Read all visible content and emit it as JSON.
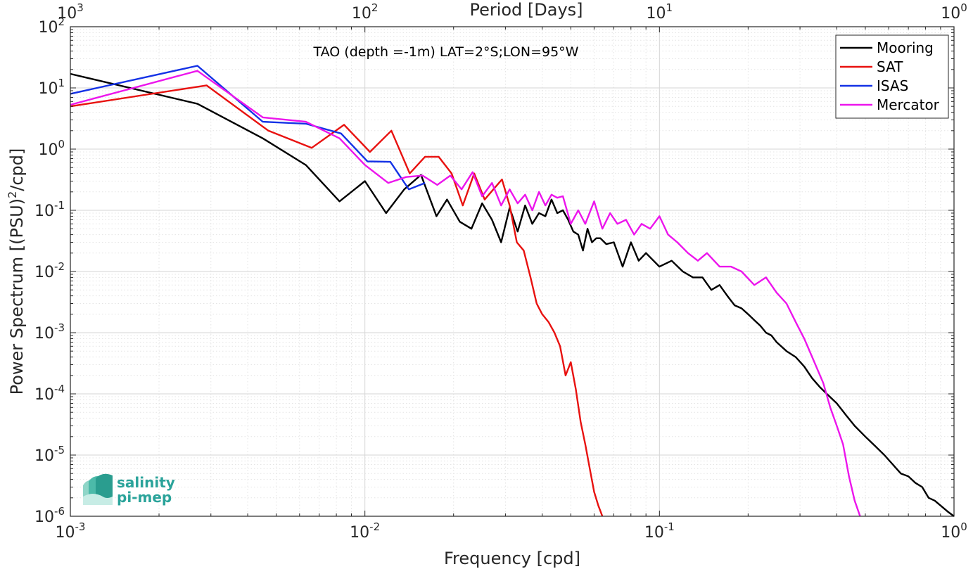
{
  "chart_data": {
    "type": "line",
    "title": "",
    "annotation": "TAO (depth =-1m) LAT=2°S;LON=95°W",
    "xlabel": "Frequency [cpd]",
    "ylabel": "Power Spectrum [(PSU)²/cpd]",
    "ylabel_parts": {
      "before": "Power Spectrum [(PSU)",
      "sup": "2",
      "after": "/cpd]"
    },
    "top_xlabel": "Period [Days]",
    "x_scale": "log",
    "y_scale": "log",
    "xlim": [
      0.001,
      1
    ],
    "ylim": [
      1e-06,
      100
    ],
    "x_ticks": [
      {
        "value": 0.001,
        "base": "10",
        "exp": "-3"
      },
      {
        "value": 0.01,
        "base": "10",
        "exp": "-2"
      },
      {
        "value": 0.1,
        "base": "10",
        "exp": "-1"
      },
      {
        "value": 1,
        "base": "10",
        "exp": "0"
      }
    ],
    "y_ticks": [
      {
        "value": 100,
        "base": "10",
        "exp": "2"
      },
      {
        "value": 10,
        "base": "10",
        "exp": "1"
      },
      {
        "value": 1,
        "base": "10",
        "exp": "0"
      },
      {
        "value": 0.1,
        "base": "10",
        "exp": "-1"
      },
      {
        "value": 0.01,
        "base": "10",
        "exp": "-2"
      },
      {
        "value": 0.001,
        "base": "10",
        "exp": "-3"
      },
      {
        "value": 0.0001,
        "base": "10",
        "exp": "-4"
      },
      {
        "value": 1e-05,
        "base": "10",
        "exp": "-5"
      },
      {
        "value": 1e-06,
        "base": "10",
        "exp": "-6"
      }
    ],
    "top_ticks": [
      {
        "value": 0.001,
        "base": "10",
        "exp": "3"
      },
      {
        "value": 0.01,
        "base": "10",
        "exp": "2"
      },
      {
        "value": 0.1,
        "base": "10",
        "exp": "1"
      },
      {
        "value": 1,
        "base": "10",
        "exp": "0"
      }
    ],
    "grid": true,
    "legend_position": "top-right",
    "series": [
      {
        "name": "Mooring",
        "color": "#000000",
        "x": [
          0.001,
          0.0027,
          0.0045,
          0.0063,
          0.0082,
          0.01,
          0.0118,
          0.0136,
          0.0155,
          0.0175,
          0.019,
          0.021,
          0.023,
          0.025,
          0.027,
          0.029,
          0.031,
          0.033,
          0.035,
          0.037,
          0.039,
          0.041,
          0.043,
          0.045,
          0.047,
          0.049,
          0.051,
          0.053,
          0.055,
          0.057,
          0.059,
          0.061,
          0.063,
          0.066,
          0.07,
          0.075,
          0.08,
          0.085,
          0.09,
          0.1,
          0.11,
          0.12,
          0.13,
          0.14,
          0.15,
          0.16,
          0.17,
          0.18,
          0.19,
          0.2,
          0.21,
          0.22,
          0.23,
          0.24,
          0.25,
          0.27,
          0.29,
          0.31,
          0.33,
          0.35,
          0.37,
          0.4,
          0.43,
          0.46,
          0.5,
          0.54,
          0.58,
          0.62,
          0.66,
          0.7,
          0.74,
          0.78,
          0.82,
          0.86,
          0.9,
          0.95,
          1.0
        ],
        "y": [
          17,
          5.5,
          1.5,
          0.55,
          0.14,
          0.3,
          0.09,
          0.22,
          0.38,
          0.08,
          0.15,
          0.065,
          0.05,
          0.13,
          0.07,
          0.03,
          0.11,
          0.045,
          0.12,
          0.06,
          0.09,
          0.08,
          0.15,
          0.09,
          0.1,
          0.07,
          0.045,
          0.04,
          0.022,
          0.05,
          0.03,
          0.035,
          0.035,
          0.028,
          0.03,
          0.012,
          0.03,
          0.015,
          0.02,
          0.012,
          0.015,
          0.01,
          0.008,
          0.008,
          0.005,
          0.006,
          0.004,
          0.0028,
          0.0025,
          0.002,
          0.0016,
          0.0013,
          0.001,
          0.0009,
          0.0007,
          0.0005,
          0.0004,
          0.00028,
          0.00018,
          0.00013,
          0.0001,
          7e-05,
          4.5e-05,
          3e-05,
          2e-05,
          1.4e-05,
          1e-05,
          7e-06,
          5e-06,
          4.5e-06,
          3.5e-06,
          3e-06,
          2e-06,
          1.8e-06,
          1.5e-06,
          1.2e-06,
          1e-06
        ]
      },
      {
        "name": "SAT",
        "color": "#e8110f",
        "x": [
          0.001,
          0.0029,
          0.0047,
          0.0066,
          0.0085,
          0.0104,
          0.0123,
          0.0142,
          0.016,
          0.0178,
          0.0197,
          0.0215,
          0.0235,
          0.0255,
          0.0273,
          0.0292,
          0.031,
          0.0328,
          0.0346,
          0.0365,
          0.0383,
          0.04,
          0.042,
          0.044,
          0.046,
          0.048,
          0.05,
          0.052,
          0.054,
          0.056,
          0.058,
          0.06,
          0.062,
          0.064
        ],
        "y": [
          5,
          11,
          2,
          1.05,
          2.5,
          0.9,
          2,
          0.4,
          0.75,
          0.75,
          0.4,
          0.12,
          0.4,
          0.15,
          0.22,
          0.32,
          0.12,
          0.03,
          0.022,
          0.008,
          0.003,
          0.002,
          0.0015,
          0.001,
          0.0006,
          0.0002,
          0.00033,
          0.00012,
          3.5e-05,
          1.5e-05,
          6e-06,
          2.5e-06,
          1.5e-06,
          1e-06
        ]
      },
      {
        "name": "ISAS",
        "color": "#1432e6",
        "x": [
          0.001,
          0.0027,
          0.0045,
          0.0063,
          0.0083,
          0.0102,
          0.0122,
          0.0141,
          0.016
        ],
        "y": [
          8,
          23,
          2.8,
          2.6,
          1.8,
          0.63,
          0.62,
          0.22,
          0.28
        ]
      },
      {
        "name": "Mercator",
        "color": "#ec15ec",
        "x": [
          0.001,
          0.0027,
          0.0045,
          0.0063,
          0.0082,
          0.01,
          0.012,
          0.0138,
          0.0157,
          0.0176,
          0.0195,
          0.0213,
          0.0232,
          0.025,
          0.027,
          0.029,
          0.031,
          0.033,
          0.035,
          0.037,
          0.039,
          0.041,
          0.043,
          0.045,
          0.047,
          0.05,
          0.053,
          0.056,
          0.06,
          0.064,
          0.068,
          0.072,
          0.077,
          0.082,
          0.087,
          0.093,
          0.1,
          0.107,
          0.115,
          0.125,
          0.135,
          0.145,
          0.16,
          0.175,
          0.19,
          0.21,
          0.23,
          0.25,
          0.27,
          0.29,
          0.31,
          0.33,
          0.36,
          0.38,
          0.4,
          0.42,
          0.44,
          0.46,
          0.48
        ],
        "y": [
          5.3,
          19,
          3.3,
          2.8,
          1.5,
          0.55,
          0.28,
          0.35,
          0.37,
          0.26,
          0.37,
          0.22,
          0.42,
          0.17,
          0.28,
          0.12,
          0.22,
          0.13,
          0.18,
          0.1,
          0.2,
          0.12,
          0.18,
          0.16,
          0.17,
          0.06,
          0.1,
          0.06,
          0.14,
          0.05,
          0.09,
          0.06,
          0.07,
          0.04,
          0.06,
          0.05,
          0.08,
          0.04,
          0.03,
          0.02,
          0.015,
          0.02,
          0.012,
          0.012,
          0.01,
          0.006,
          0.008,
          0.0045,
          0.003,
          0.0015,
          0.0008,
          0.0004,
          0.00015,
          6e-05,
          3e-05,
          1.5e-05,
          4.5e-06,
          1.8e-06,
          1e-06
        ]
      }
    ]
  },
  "logo": {
    "line1": "salinity",
    "line2": "pi-mep",
    "color": "#2aa39a"
  }
}
